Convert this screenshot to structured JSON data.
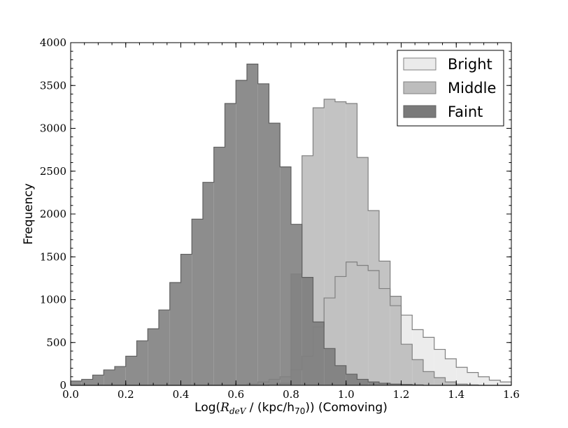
{
  "chart_data": {
    "type": "bar",
    "subtype": "histogram",
    "title": "",
    "xlabel_parts": [
      "Log(",
      "R",
      "deV",
      " / (kpc/h",
      "70",
      ")) (Comoving)"
    ],
    "ylabel": "Frequency",
    "xlim": [
      0.0,
      1.6
    ],
    "ylim": [
      0,
      4000
    ],
    "xticks": [
      "0.0",
      "0.2",
      "0.4",
      "0.6",
      "0.8",
      "1.0",
      "1.2",
      "1.4",
      "1.6"
    ],
    "yticks": [
      "0",
      "500",
      "1000",
      "1500",
      "2000",
      "2500",
      "3000",
      "3500",
      "4000"
    ],
    "grid": false,
    "legend_position": "top-right",
    "bin_width": 0.04,
    "bin_start": 0.0,
    "series": [
      {
        "name": "Bright",
        "color": "#ebebeb",
        "edge": "#808080",
        "values": [
          0,
          0,
          0,
          0,
          0,
          0,
          0,
          0,
          0,
          0,
          0,
          0,
          0,
          0,
          0,
          5,
          15,
          40,
          70,
          100,
          180,
          340,
          680,
          1020,
          1270,
          1440,
          1400,
          1340,
          1130,
          930,
          820,
          650,
          560,
          420,
          310,
          210,
          150,
          100,
          60,
          40
        ]
      },
      {
        "name": "Middle",
        "color": "#bdbdbd",
        "edge": "#808080",
        "values": [
          0,
          0,
          0,
          0,
          0,
          0,
          0,
          0,
          0,
          0,
          0,
          0,
          0,
          0,
          0,
          0,
          0,
          0,
          5,
          25,
          1300,
          2680,
          3240,
          3340,
          3310,
          3290,
          2660,
          2040,
          1450,
          1040,
          480,
          300,
          160,
          90,
          40,
          15,
          5,
          0,
          0,
          0
        ]
      },
      {
        "name": "Faint",
        "color": "#7a7a7a",
        "edge": "#606060",
        "values": [
          50,
          70,
          120,
          180,
          220,
          340,
          520,
          660,
          880,
          1200,
          1530,
          1940,
          2370,
          2780,
          3290,
          3560,
          3750,
          3520,
          3060,
          2550,
          1880,
          1260,
          740,
          430,
          230,
          130,
          70,
          40,
          25,
          15,
          10,
          5,
          0,
          0,
          0,
          0,
          0,
          0,
          0,
          0
        ]
      }
    ]
  }
}
